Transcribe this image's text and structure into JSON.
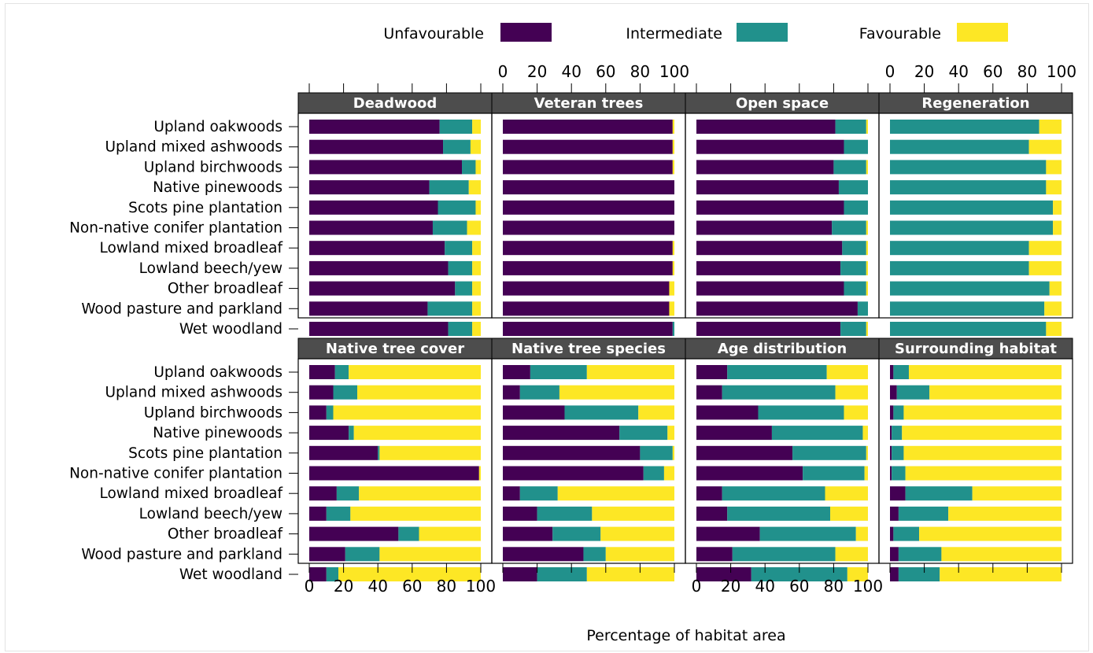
{
  "colors": {
    "unfavourable": "#440154",
    "intermediate": "#21918c",
    "favourable": "#fde725",
    "strip_bg": "#4d4d4d",
    "strip_text": "#ffffff"
  },
  "legend": {
    "unfavourable": "Unfavourable",
    "intermediate": "Intermediate",
    "favourable": "Favourable"
  },
  "xlabel": "Percentage of habitat area",
  "chart_data": {
    "type": "bar",
    "orientation": "horizontal",
    "stacked": true,
    "xlim": [
      0,
      100
    ],
    "xticks": [
      0,
      20,
      40,
      60,
      80,
      100
    ],
    "xlabel": "Percentage of habitat area",
    "series_names": [
      "Unfavourable",
      "Intermediate",
      "Favourable"
    ],
    "categories": [
      "Upland oakwoods",
      "Upland mixed ashwoods",
      "Upland birchwoods",
      "Native pinewoods",
      "Scots pine plantation",
      "Non-native conifer plantation",
      "Lowland mixed broadleaf",
      "Lowland beech/yew",
      "Other broadleaf",
      "Wood pasture and parkland",
      "Wet woodland"
    ],
    "panels": [
      {
        "title": "Deadwood",
        "data": [
          [
            76,
            19,
            5
          ],
          [
            78,
            16,
            6
          ],
          [
            89,
            8,
            3
          ],
          [
            70,
            23,
            7
          ],
          [
            75,
            22,
            3
          ],
          [
            72,
            20,
            8
          ],
          [
            79,
            16,
            5
          ],
          [
            81,
            14,
            5
          ],
          [
            85,
            10,
            5
          ],
          [
            69,
            26,
            5
          ],
          [
            81,
            14,
            5
          ]
        ]
      },
      {
        "title": "Veteran trees",
        "data": [
          [
            99,
            0,
            1
          ],
          [
            99,
            0,
            1
          ],
          [
            99,
            0,
            1
          ],
          [
            100,
            0,
            0
          ],
          [
            100,
            0,
            0
          ],
          [
            100,
            0,
            0
          ],
          [
            99,
            0,
            1
          ],
          [
            99,
            0,
            1
          ],
          [
            97,
            0,
            3
          ],
          [
            97,
            0,
            3
          ],
          [
            99,
            1,
            0
          ]
        ]
      },
      {
        "title": "Open space",
        "data": [
          [
            81,
            18,
            1
          ],
          [
            86,
            14,
            0
          ],
          [
            80,
            19,
            1
          ],
          [
            83,
            17,
            0
          ],
          [
            86,
            14,
            0
          ],
          [
            79,
            20,
            1
          ],
          [
            85,
            14,
            1
          ],
          [
            84,
            15,
            1
          ],
          [
            86,
            13,
            1
          ],
          [
            94,
            6,
            0
          ],
          [
            84,
            15,
            1
          ]
        ]
      },
      {
        "title": "Regeneration",
        "data": [
          [
            0,
            87,
            13
          ],
          [
            0,
            81,
            19
          ],
          [
            0,
            91,
            9
          ],
          [
            0,
            91,
            9
          ],
          [
            0,
            95,
            5
          ],
          [
            0,
            95,
            5
          ],
          [
            0,
            81,
            19
          ],
          [
            0,
            81,
            19
          ],
          [
            0,
            93,
            7
          ],
          [
            0,
            90,
            10
          ],
          [
            0,
            91,
            9
          ]
        ]
      },
      {
        "title": "Native tree cover",
        "data": [
          [
            15,
            8,
            77
          ],
          [
            14,
            14,
            72
          ],
          [
            10,
            4,
            86
          ],
          [
            23,
            3,
            74
          ],
          [
            40,
            1,
            59
          ],
          [
            99,
            0,
            1
          ],
          [
            16,
            13,
            71
          ],
          [
            10,
            14,
            76
          ],
          [
            52,
            12,
            36
          ],
          [
            21,
            20,
            59
          ],
          [
            10,
            7,
            83
          ]
        ]
      },
      {
        "title": "Native tree species",
        "data": [
          [
            16,
            33,
            51
          ],
          [
            10,
            23,
            67
          ],
          [
            36,
            43,
            21
          ],
          [
            68,
            28,
            4
          ],
          [
            80,
            19,
            1
          ],
          [
            82,
            12,
            6
          ],
          [
            10,
            22,
            68
          ],
          [
            20,
            32,
            48
          ],
          [
            29,
            28,
            43
          ],
          [
            47,
            13,
            40
          ],
          [
            20,
            29,
            51
          ]
        ]
      },
      {
        "title": "Age distribution",
        "data": [
          [
            18,
            58,
            24
          ],
          [
            15,
            66,
            19
          ],
          [
            36,
            50,
            14
          ],
          [
            44,
            53,
            3
          ],
          [
            56,
            43,
            1
          ],
          [
            62,
            36,
            2
          ],
          [
            15,
            60,
            25
          ],
          [
            18,
            60,
            22
          ],
          [
            37,
            56,
            7
          ],
          [
            21,
            60,
            19
          ],
          [
            32,
            56,
            12
          ]
        ]
      },
      {
        "title": "Surrounding habitat",
        "data": [
          [
            2,
            9,
            89
          ],
          [
            4,
            19,
            77
          ],
          [
            2,
            6,
            92
          ],
          [
            1,
            6,
            93
          ],
          [
            1,
            7,
            92
          ],
          [
            1,
            8,
            91
          ],
          [
            9,
            39,
            52
          ],
          [
            5,
            29,
            66
          ],
          [
            2,
            15,
            83
          ],
          [
            5,
            25,
            70
          ],
          [
            5,
            24,
            71
          ]
        ]
      }
    ]
  }
}
